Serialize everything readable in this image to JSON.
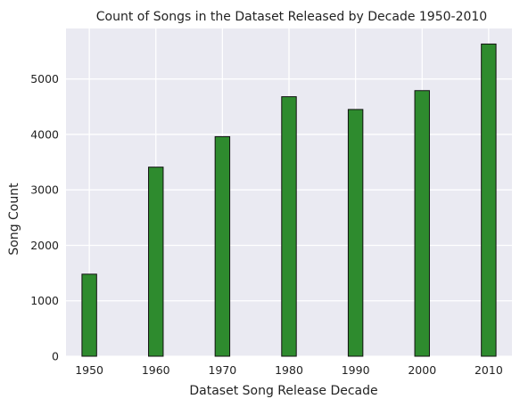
{
  "chart_data": {
    "type": "bar",
    "title": "Count of Songs in the Dataset Released by Decade 1950-2010",
    "xlabel": "Dataset Song Release Decade",
    "ylabel": "Song Count",
    "x": [
      1950,
      1960,
      1970,
      1980,
      1990,
      2000,
      2010
    ],
    "values": [
      1480,
      3410,
      3960,
      4680,
      4450,
      4790,
      5630
    ],
    "xlim": [
      1946.5,
      2013.5
    ],
    "ylim": [
      0,
      5910
    ],
    "xticks": [
      1950,
      1960,
      1970,
      1980,
      1990,
      2000,
      2010
    ],
    "yticks": [
      0,
      1000,
      2000,
      3000,
      4000,
      5000
    ],
    "bar_width_years": 2.2,
    "grid": true,
    "legend": "none",
    "colors": {
      "plot_background": "#eaeaf2",
      "grid": "#ffffff",
      "bar_fill": "#2e8b2e",
      "bar_edge": "#111111"
    }
  }
}
